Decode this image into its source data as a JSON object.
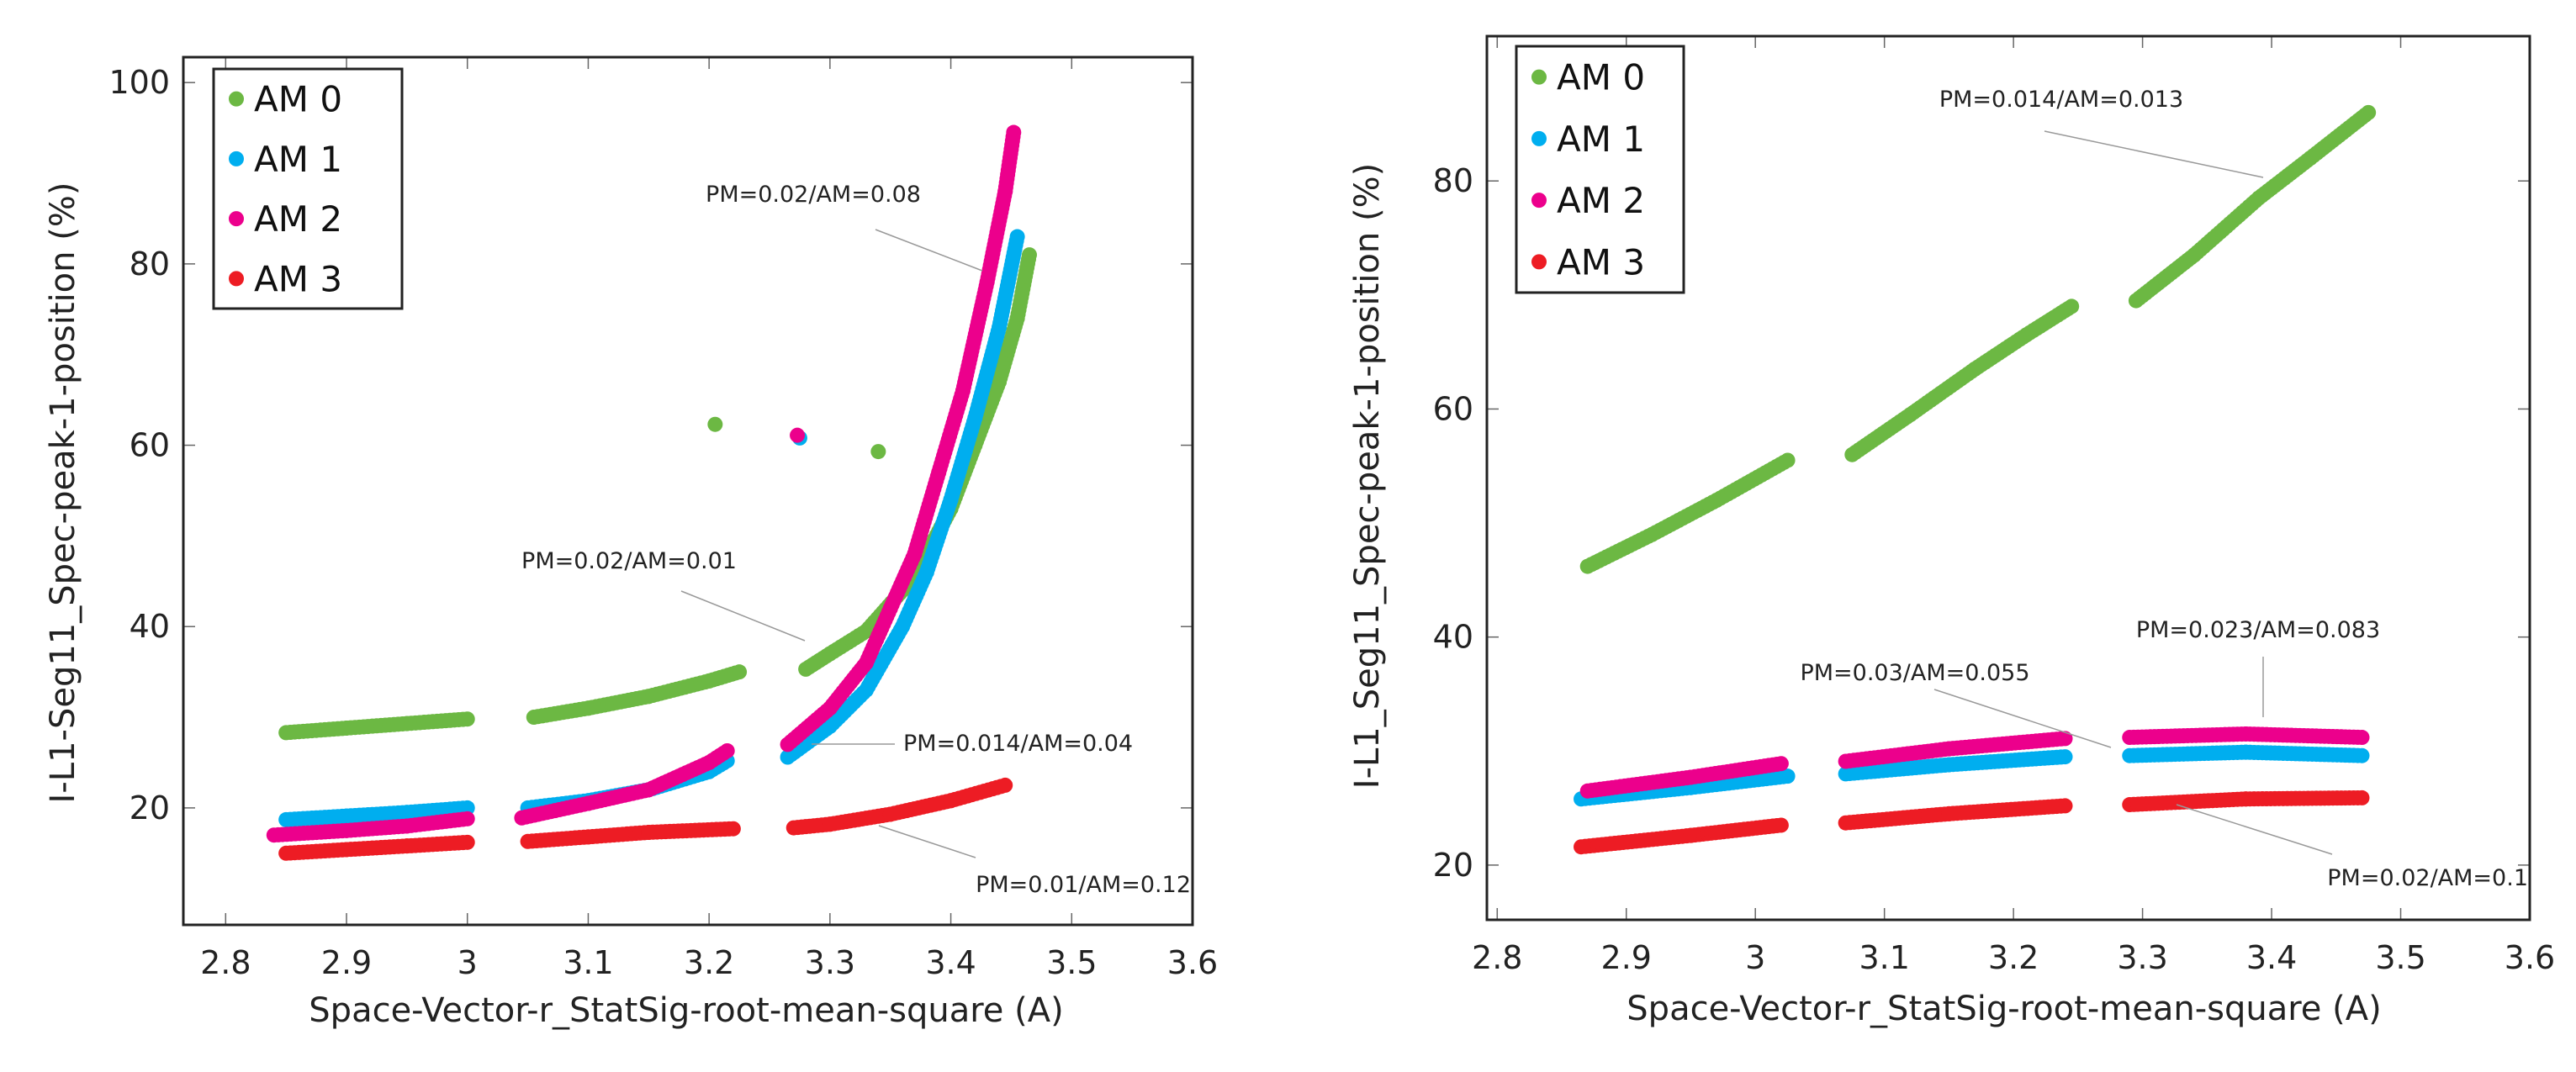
{
  "chart_data": [
    {
      "type": "scatter",
      "title": "",
      "xlabel": "Space-Vector-r_StatSig-root-mean-square (A)",
      "ylabel": "I-L1-Seg11_Spec-peak-1-position (%)",
      "xlim": [
        2.765,
        3.6
      ],
      "ylim": [
        7.1,
        102.8
      ],
      "xticks": [
        "2.8",
        "2.9",
        "3",
        "3.1",
        "3.2",
        "3.3",
        "3.4",
        "3.5",
        "3.6"
      ],
      "yticks": [
        "20",
        "40",
        "60",
        "80",
        "100"
      ],
      "legend_position": "top-left",
      "series": [
        {
          "name": "AM 0",
          "color": "#6cb843",
          "segments": [
            [
              [
                2.85,
                28.3
              ],
              [
                2.9,
                28.8
              ],
              [
                2.95,
                29.3
              ],
              [
                3.0,
                29.8
              ]
            ],
            [
              [
                3.055,
                30.0
              ],
              [
                3.1,
                31.0
              ],
              [
                3.15,
                32.3
              ],
              [
                3.2,
                34.0
              ],
              [
                3.225,
                35.0
              ]
            ],
            [
              [
                3.28,
                35.3
              ],
              [
                3.3,
                37.0
              ],
              [
                3.33,
                39.5
              ],
              [
                3.36,
                44.0
              ],
              [
                3.38,
                48.0
              ],
              [
                3.4,
                53.0
              ],
              [
                3.42,
                60.0
              ],
              [
                3.44,
                67.0
              ],
              [
                3.455,
                74.0
              ],
              [
                3.465,
                81.0
              ]
            ]
          ],
          "outliers": [
            [
              3.205,
              62.3
            ],
            [
              3.34,
              59.3
            ]
          ]
        },
        {
          "name": "AM 1",
          "color": "#00aeef",
          "segments": [
            [
              [
                2.85,
                18.7
              ],
              [
                2.9,
                19.1
              ],
              [
                2.95,
                19.5
              ],
              [
                3.0,
                20.0
              ]
            ],
            [
              [
                3.05,
                20.0
              ],
              [
                3.1,
                20.8
              ],
              [
                3.15,
                22.0
              ],
              [
                3.2,
                24.0
              ],
              [
                3.215,
                25.2
              ]
            ],
            [
              [
                3.265,
                25.6
              ],
              [
                3.3,
                29.0
              ],
              [
                3.33,
                33.0
              ],
              [
                3.36,
                40.0
              ],
              [
                3.38,
                46.0
              ],
              [
                3.4,
                54.0
              ],
              [
                3.42,
                63.0
              ],
              [
                3.44,
                73.0
              ],
              [
                3.455,
                83.0
              ]
            ]
          ],
          "outliers": [
            [
              3.275,
              60.8
            ]
          ]
        },
        {
          "name": "AM 2",
          "color": "#ec008c",
          "segments": [
            [
              [
                2.84,
                17.0
              ],
              [
                2.9,
                17.5
              ],
              [
                2.95,
                18.0
              ],
              [
                3.0,
                18.8
              ]
            ],
            [
              [
                3.045,
                18.9
              ],
              [
                3.1,
                20.5
              ],
              [
                3.15,
                22.0
              ],
              [
                3.2,
                25.0
              ],
              [
                3.215,
                26.3
              ]
            ],
            [
              [
                3.265,
                27.0
              ],
              [
                3.3,
                31.0
              ],
              [
                3.33,
                36.0
              ],
              [
                3.35,
                42.0
              ],
              [
                3.37,
                48.0
              ],
              [
                3.39,
                57.0
              ],
              [
                3.41,
                66.0
              ],
              [
                3.43,
                78.0
              ],
              [
                3.445,
                88.0
              ],
              [
                3.452,
                94.5
              ]
            ]
          ],
          "outliers": [
            [
              3.273,
              61.1
            ]
          ]
        },
        {
          "name": "AM 3",
          "color": "#ed1c24",
          "segments": [
            [
              [
                2.85,
                15.0
              ],
              [
                2.9,
                15.4
              ],
              [
                2.95,
                15.8
              ],
              [
                3.0,
                16.2
              ]
            ],
            [
              [
                3.05,
                16.3
              ],
              [
                3.1,
                16.8
              ],
              [
                3.15,
                17.3
              ],
              [
                3.22,
                17.7
              ]
            ],
            [
              [
                3.27,
                17.8
              ],
              [
                3.3,
                18.2
              ],
              [
                3.35,
                19.3
              ],
              [
                3.4,
                20.8
              ],
              [
                3.445,
                22.5
              ]
            ]
          ],
          "outliers": []
        }
      ],
      "annotations": [
        "PM=0.02/AM=0.08",
        "PM=0.02/AM=0.01",
        "PM=0.014/AM=0.04",
        "PM=0.01/AM=0.12"
      ]
    },
    {
      "type": "scatter",
      "title": "",
      "xlabel": "Space-Vector-r_StatSig-root-mean-square (A)",
      "ylabel": "I-L1_Seg11_Spec-peak-1-position (%)",
      "xlim": [
        2.792,
        3.6
      ],
      "ylim": [
        15.2,
        92.7
      ],
      "xticks": [
        "2.8",
        "2.9",
        "3",
        "3.1",
        "3.2",
        "3.3",
        "3.4",
        "3.5",
        "3.6"
      ],
      "yticks": [
        "20",
        "40",
        "60",
        "80"
      ],
      "legend_position": "top-left",
      "series": [
        {
          "name": "AM 0",
          "color": "#6cb843",
          "segments": [
            [
              [
                2.87,
                46.2
              ],
              [
                2.92,
                49.0
              ],
              [
                2.97,
                52.0
              ],
              [
                3.025,
                55.5
              ]
            ],
            [
              [
                3.075,
                56.0
              ],
              [
                3.12,
                59.5
              ],
              [
                3.17,
                63.5
              ],
              [
                3.21,
                66.5
              ],
              [
                3.245,
                69.0
              ]
            ],
            [
              [
                3.295,
                69.5
              ],
              [
                3.34,
                73.5
              ],
              [
                3.39,
                78.5
              ],
              [
                3.43,
                82.0
              ],
              [
                3.475,
                86.0
              ]
            ]
          ],
          "outliers": []
        },
        {
          "name": "AM 1",
          "color": "#00aeef",
          "segments": [
            [
              [
                2.865,
                25.8
              ],
              [
                2.95,
                26.8
              ],
              [
                3.025,
                27.8
              ]
            ],
            [
              [
                3.07,
                28.0
              ],
              [
                3.15,
                28.8
              ],
              [
                3.24,
                29.5
              ]
            ],
            [
              [
                3.29,
                29.6
              ],
              [
                3.38,
                29.9
              ],
              [
                3.47,
                29.6
              ]
            ]
          ],
          "outliers": []
        },
        {
          "name": "AM 2",
          "color": "#ec008c",
          "segments": [
            [
              [
                2.87,
                26.5
              ],
              [
                2.95,
                27.7
              ],
              [
                3.02,
                28.9
              ]
            ],
            [
              [
                3.07,
                29.1
              ],
              [
                3.15,
                30.2
              ],
              [
                3.24,
                31.1
              ]
            ],
            [
              [
                3.29,
                31.2
              ],
              [
                3.38,
                31.5
              ],
              [
                3.47,
                31.2
              ]
            ]
          ],
          "outliers": []
        },
        {
          "name": "AM 3",
          "color": "#ed1c24",
          "segments": [
            [
              [
                2.865,
                21.6
              ],
              [
                2.95,
                22.6
              ],
              [
                3.02,
                23.5
              ]
            ],
            [
              [
                3.07,
                23.7
              ],
              [
                3.15,
                24.5
              ],
              [
                3.24,
                25.2
              ]
            ],
            [
              [
                3.29,
                25.3
              ],
              [
                3.38,
                25.8
              ],
              [
                3.47,
                25.9
              ]
            ]
          ],
          "outliers": []
        }
      ],
      "annotations": [
        "PM=0.014/AM=0.013",
        "PM=0.03/AM=0.055",
        "PM=0.023/AM=0.083",
        "PM=0.02/AM=0.1"
      ]
    }
  ]
}
